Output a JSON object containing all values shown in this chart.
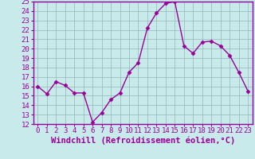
{
  "x": [
    0,
    1,
    2,
    3,
    4,
    5,
    6,
    7,
    8,
    9,
    10,
    11,
    12,
    13,
    14,
    15,
    16,
    17,
    18,
    19,
    20,
    21,
    22,
    23
  ],
  "y": [
    16,
    15.2,
    16.5,
    16.1,
    15.3,
    15.3,
    12.2,
    13.2,
    14.6,
    15.3,
    17.5,
    18.5,
    22.2,
    23.8,
    24.8,
    25.0,
    20.3,
    19.5,
    20.7,
    20.8,
    20.3,
    19.3,
    17.5,
    15.5
  ],
  "line_color": "#990099",
  "marker": "D",
  "markersize": 2.5,
  "linewidth": 1.0,
  "xlabel": "Windchill (Refroidissement éolien,°C)",
  "ylim": [
    12,
    25
  ],
  "xlim": [
    -0.5,
    23.5
  ],
  "yticks": [
    12,
    13,
    14,
    15,
    16,
    17,
    18,
    19,
    20,
    21,
    22,
    23,
    24,
    25
  ],
  "xticks": [
    0,
    1,
    2,
    3,
    4,
    5,
    6,
    7,
    8,
    9,
    10,
    11,
    12,
    13,
    14,
    15,
    16,
    17,
    18,
    19,
    20,
    21,
    22,
    23
  ],
  "bg_color": "#c8eaea",
  "grid_color": "#9bbfbf",
  "xlabel_fontsize": 7.5,
  "tick_fontsize": 6.5,
  "label_color": "#990099"
}
